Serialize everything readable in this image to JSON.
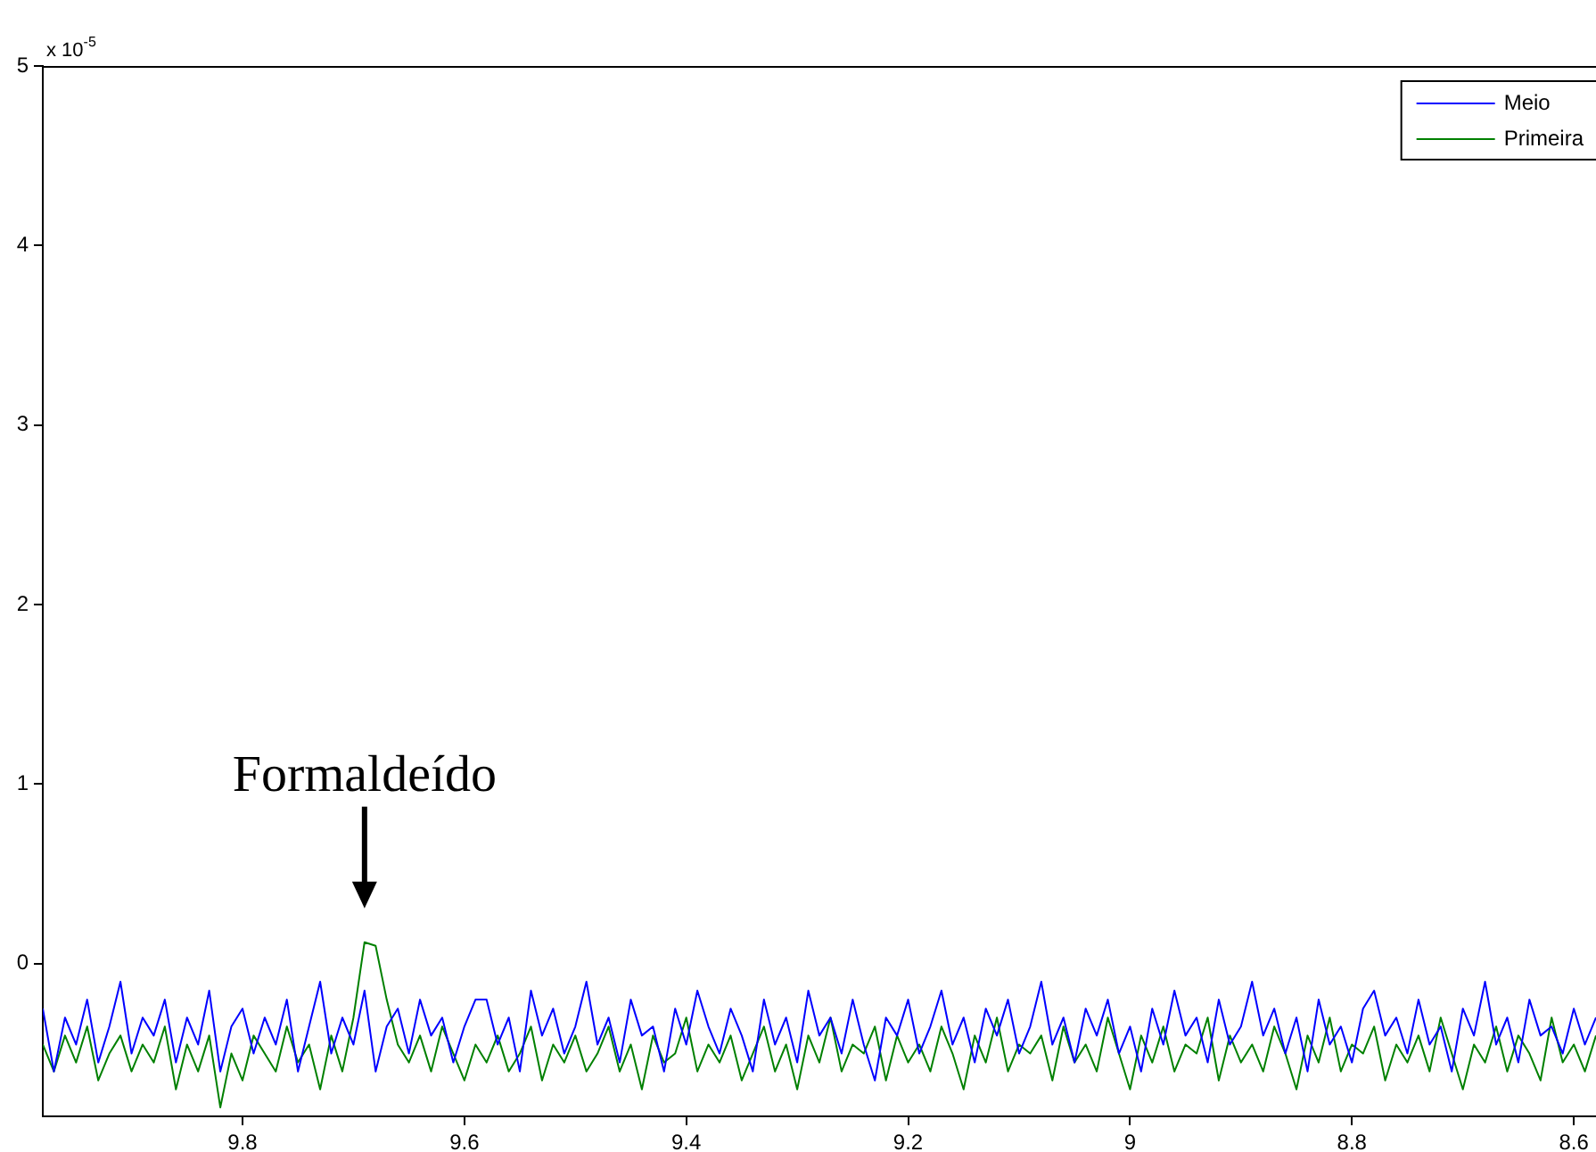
{
  "chart_data": {
    "type": "line",
    "annotations": [
      "x 10$^{-5}$",
      {
        "text": "Formaldeído",
        "x": 9.69,
        "y": 0.12
      }
    ],
    "x": [
      9.98,
      9.97,
      9.96,
      9.95,
      9.94,
      9.93,
      9.92,
      9.91,
      9.9,
      9.89,
      9.88,
      9.87,
      9.86,
      9.85,
      9.84,
      9.83,
      9.82,
      9.81,
      9.8,
      9.79,
      9.78,
      9.77,
      9.76,
      9.75,
      9.74,
      9.73,
      9.72,
      9.71,
      9.7,
      9.69,
      9.68,
      9.67,
      9.66,
      9.65,
      9.64,
      9.63,
      9.62,
      9.61,
      9.6,
      9.59,
      9.58,
      9.57,
      9.56,
      9.55,
      9.54,
      9.53,
      9.52,
      9.51,
      9.5,
      9.49,
      9.48,
      9.47,
      9.46,
      9.45,
      9.44,
      9.43,
      9.42,
      9.41,
      9.4,
      9.39,
      9.38,
      9.37,
      9.36,
      9.35,
      9.34,
      9.33,
      9.32,
      9.31,
      9.3,
      9.29,
      9.28,
      9.27,
      9.26,
      9.25,
      9.24,
      9.23,
      9.22,
      9.21,
      9.2,
      9.19,
      9.18,
      9.17,
      9.16,
      9.15,
      9.14,
      9.13,
      9.12,
      9.11,
      9.1,
      9.09,
      9.08,
      9.07,
      9.06,
      9.05,
      9.04,
      9.03,
      9.02,
      9.01,
      9,
      8.99,
      8.98,
      8.97,
      8.96,
      8.95,
      8.94,
      8.93,
      8.92,
      8.91,
      8.9,
      8.89,
      8.88,
      8.87,
      8.86,
      8.85,
      8.84,
      8.83,
      8.82,
      8.81,
      8.8,
      8.79,
      8.78,
      8.77,
      8.76,
      8.75,
      8.74,
      8.73,
      8.72,
      8.71,
      8.7,
      8.69,
      8.68,
      8.67,
      8.66,
      8.65,
      8.64,
      8.63,
      8.62,
      8.61,
      8.6,
      8.59,
      8.58
    ],
    "series": [
      {
        "name": "Meio",
        "color": "#0000ff",
        "values": [
          -0.25,
          -0.6,
          -0.3,
          -0.45,
          -0.2,
          -0.55,
          -0.35,
          -0.1,
          -0.5,
          -0.3,
          -0.4,
          -0.2,
          -0.55,
          -0.3,
          -0.45,
          -0.15,
          -0.6,
          -0.35,
          -0.25,
          -0.5,
          -0.3,
          -0.45,
          -0.2,
          -0.6,
          -0.35,
          -0.1,
          -0.5,
          -0.3,
          -0.45,
          -0.15,
          -0.6,
          -0.35,
          -0.25,
          -0.5,
          -0.2,
          -0.4,
          -0.3,
          -0.55,
          -0.35,
          -0.2,
          -0.2,
          -0.45,
          -0.3,
          -0.6,
          -0.15,
          -0.4,
          -0.25,
          -0.5,
          -0.35,
          -0.1,
          -0.45,
          -0.3,
          -0.55,
          -0.2,
          -0.4,
          -0.35,
          -0.6,
          -0.25,
          -0.45,
          -0.15,
          -0.35,
          -0.5,
          -0.25,
          -0.4,
          -0.6,
          -0.2,
          -0.45,
          -0.3,
          -0.55,
          -0.15,
          -0.4,
          -0.3,
          -0.5,
          -0.2,
          -0.45,
          -0.65,
          -0.3,
          -0.4,
          -0.2,
          -0.5,
          -0.35,
          -0.15,
          -0.45,
          -0.3,
          -0.55,
          -0.25,
          -0.4,
          -0.2,
          -0.5,
          -0.35,
          -0.1,
          -0.45,
          -0.3,
          -0.55,
          -0.25,
          -0.4,
          -0.2,
          -0.5,
          -0.35,
          -0.6,
          -0.25,
          -0.45,
          -0.15,
          -0.4,
          -0.3,
          -0.55,
          -0.2,
          -0.45,
          -0.35,
          -0.1,
          -0.4,
          -0.25,
          -0.5,
          -0.3,
          -0.6,
          -0.2,
          -0.45,
          -0.35,
          -0.55,
          -0.25,
          -0.15,
          -0.4,
          -0.3,
          -0.5,
          -0.2,
          -0.45,
          -0.35,
          -0.6,
          -0.25,
          -0.4,
          -0.1,
          -0.45,
          -0.3,
          -0.55,
          -0.2,
          -0.4,
          -0.35,
          -0.5,
          -0.25,
          -0.45,
          -0.3
        ]
      },
      {
        "name": "Primeira",
        "color": "#008000",
        "values": [
          -0.45,
          -0.6,
          -0.4,
          -0.55,
          -0.35,
          -0.65,
          -0.5,
          -0.4,
          -0.6,
          -0.45,
          -0.55,
          -0.35,
          -0.7,
          -0.45,
          -0.6,
          -0.4,
          -0.8,
          -0.5,
          -0.65,
          -0.4,
          -0.5,
          -0.6,
          -0.35,
          -0.55,
          -0.45,
          -0.7,
          -0.4,
          -0.6,
          -0.3,
          0.12,
          0.1,
          -0.2,
          -0.45,
          -0.55,
          -0.4,
          -0.6,
          -0.35,
          -0.5,
          -0.65,
          -0.45,
          -0.55,
          -0.4,
          -0.6,
          -0.5,
          -0.35,
          -0.65,
          -0.45,
          -0.55,
          -0.4,
          -0.6,
          -0.5,
          -0.35,
          -0.6,
          -0.45,
          -0.7,
          -0.4,
          -0.55,
          -0.5,
          -0.3,
          -0.6,
          -0.45,
          -0.55,
          -0.4,
          -0.65,
          -0.5,
          -0.35,
          -0.6,
          -0.45,
          -0.7,
          -0.4,
          -0.55,
          -0.3,
          -0.6,
          -0.45,
          -0.5,
          -0.35,
          -0.65,
          -0.4,
          -0.55,
          -0.45,
          -0.6,
          -0.35,
          -0.5,
          -0.7,
          -0.4,
          -0.55,
          -0.3,
          -0.6,
          -0.45,
          -0.5,
          -0.4,
          -0.65,
          -0.35,
          -0.55,
          -0.45,
          -0.6,
          -0.3,
          -0.5,
          -0.7,
          -0.4,
          -0.55,
          -0.35,
          -0.6,
          -0.45,
          -0.5,
          -0.3,
          -0.65,
          -0.4,
          -0.55,
          -0.45,
          -0.6,
          -0.35,
          -0.5,
          -0.7,
          -0.4,
          -0.55,
          -0.3,
          -0.6,
          -0.45,
          -0.5,
          -0.35,
          -0.65,
          -0.45,
          -0.55,
          -0.4,
          -0.6,
          -0.3,
          -0.5,
          -0.7,
          -0.45,
          -0.55,
          -0.35,
          -0.6,
          -0.4,
          -0.5,
          -0.65,
          -0.3,
          -0.55,
          -0.45,
          -0.6,
          -0.4
        ]
      }
    ],
    "xlim": [
      9.98,
      8.58
    ],
    "xticks": [
      9.8,
      9.6,
      9.4,
      9.2,
      9,
      8.8,
      8.6
    ],
    "ylim": [
      -0.85,
      5
    ],
    "yticks": [
      0,
      1,
      2,
      3,
      4,
      5
    ],
    "grid": false,
    "legend": "top right",
    "marker": "none",
    "line_style": "solid"
  }
}
